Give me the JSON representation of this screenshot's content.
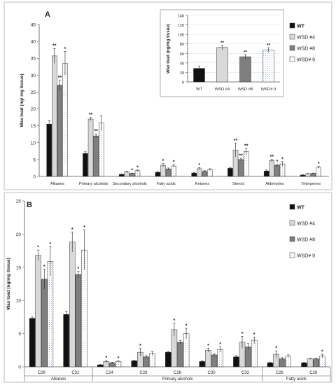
{
  "chart_data": [
    {
      "panel": "A",
      "type": "bar",
      "ylabel": "Wax load (ng/ mg tissue)",
      "ylim": [
        0,
        45
      ],
      "yticks": [
        "0",
        "5",
        "10",
        "15",
        "20",
        "25",
        "30",
        "35",
        "40",
        "45"
      ],
      "categories": [
        "Alkanes",
        "Primary alcohols",
        "Secondary alcohols",
        "Fatty acids",
        "Ketones",
        "Sterols",
        "Aldehydes",
        "Triterpenes"
      ],
      "series": [
        {
          "name": "WT",
          "values": [
            15.5,
            6.8,
            0.6,
            1.2,
            1.0,
            2.4,
            1.6,
            0.4
          ],
          "errors": [
            1.0,
            0.5,
            0.1,
            0.2,
            0.2,
            0.2,
            0.3,
            0.1
          ],
          "sig": [
            "",
            "",
            "",
            "",
            "",
            "",
            "",
            ""
          ]
        },
        {
          "name": "WSD #4",
          "values": [
            35.7,
            17.0,
            1.3,
            3.3,
            2.3,
            7.8,
            4.7,
            0.8
          ],
          "errors": [
            2.2,
            0.5,
            0.2,
            0.5,
            0.3,
            2.0,
            0.4,
            0.1
          ],
          "sig": [
            "**",
            "**",
            "",
            "*",
            "*",
            "**",
            "**",
            ""
          ]
        },
        {
          "name": "WSD #8",
          "values": [
            27.0,
            12.0,
            0.9,
            2.2,
            1.5,
            5.0,
            3.3,
            0.9
          ],
          "errors": [
            1.5,
            0.6,
            0.1,
            0.3,
            0.2,
            0.4,
            0.3,
            0.1
          ],
          "sig": [
            "**",
            "**",
            "*",
            "",
            "",
            "**",
            "*",
            ""
          ]
        },
        {
          "name": "WSD# 9",
          "values": [
            33.5,
            15.8,
            1.7,
            3.1,
            2.0,
            7.4,
            3.7,
            2.7
          ],
          "errors": [
            3.5,
            2.2,
            0.2,
            0.4,
            0.3,
            0.9,
            0.7,
            0.3
          ],
          "sig": [
            "*",
            "",
            "*",
            "*",
            "",
            "**",
            "*",
            "*"
          ]
        }
      ]
    },
    {
      "panel": "A-inset",
      "type": "bar",
      "ylabel": "Wax load (ng/mg tissue)",
      "ylim": [
        0,
        140
      ],
      "yticks": [
        "0",
        "20",
        "40",
        "60",
        "80",
        "100",
        "120",
        "140"
      ],
      "categories": [
        "WT",
        "WSD #4",
        "WSD #8",
        "WSD# 9"
      ],
      "values": [
        28.5,
        72.5,
        53.0,
        67.5
      ],
      "errors": [
        5.0,
        5.0,
        4.5,
        4.5
      ],
      "sig": [
        "",
        "**",
        "**",
        "**"
      ]
    },
    {
      "panel": "B",
      "type": "bar",
      "ylabel": "Wax load (ng/mg tissue)",
      "ylim": [
        0,
        25
      ],
      "yticks": [
        "0",
        "5",
        "10",
        "15",
        "20",
        "25"
      ],
      "categories": [
        "C29",
        "C31",
        "C24",
        "C26",
        "C28",
        "C30",
        "C32",
        "C26",
        "C28"
      ],
      "groups": [
        {
          "label": "Alkanes",
          "span": [
            0,
            1
          ]
        },
        {
          "label": "Primary alcohols",
          "span": [
            2,
            6
          ]
        },
        {
          "label": "Fatty acids",
          "span": [
            7,
            8
          ]
        }
      ],
      "series": [
        {
          "name": "WT",
          "values": [
            7.3,
            7.9,
            0.3,
            0.9,
            2.2,
            0.8,
            1.5,
            0.6,
            0.6
          ],
          "errors": [
            0.2,
            0.5,
            0.05,
            0.1,
            0.1,
            0.1,
            0.2,
            0.1,
            0.05
          ],
          "sig": [
            "",
            "",
            "",
            "",
            "",
            "",
            "",
            "",
            ""
          ]
        },
        {
          "name": "WSD #4",
          "values": [
            16.8,
            18.8,
            0.8,
            2.2,
            5.6,
            2.5,
            3.7,
            1.9,
            1.2
          ],
          "errors": [
            0.8,
            1.5,
            0.15,
            0.6,
            1.0,
            0.3,
            0.9,
            0.5,
            0.1
          ],
          "sig": [
            "*",
            "*",
            "*",
            "*",
            "*",
            "*",
            "*",
            "*",
            ""
          ]
        },
        {
          "name": "WSD #8",
          "values": [
            13.2,
            13.9,
            0.6,
            1.5,
            3.7,
            1.8,
            3.0,
            1.2,
            1.2
          ],
          "errors": [
            1.5,
            0.5,
            0.1,
            0.2,
            0.3,
            0.2,
            0.5,
            0.2,
            0.1
          ],
          "sig": [
            "*",
            "*",
            "",
            "",
            "",
            "",
            "",
            "",
            ""
          ]
        },
        {
          "name": "WSD# 9",
          "values": [
            15.9,
            17.6,
            0.8,
            2.0,
            5.0,
            2.6,
            4.0,
            1.6,
            1.6
          ],
          "errors": [
            2.2,
            3.0,
            0.1,
            0.3,
            0.8,
            0.4,
            0.5,
            0.2,
            0.3
          ],
          "sig": [
            "*",
            "*",
            "*",
            "",
            "*",
            "*",
            "*",
            "",
            "*"
          ]
        }
      ]
    }
  ],
  "panels": {
    "a": {
      "label": "A",
      "legend": [
        "WT",
        "WSD #4",
        "WSD #8",
        "WSD# 9"
      ]
    },
    "b": {
      "label": "B",
      "legend": [
        "WT",
        "WSD #4",
        "WSD #8",
        "WSD# 9"
      ]
    }
  },
  "colors": {
    "wt": "#111111",
    "wsd4": "#d9d9d9",
    "wsd8": "#7f7f7f",
    "wsd9": "#ffffff",
    "wsd9_dots": "#a9bedb",
    "border": "#333333",
    "grid": "#e3e3e3"
  }
}
